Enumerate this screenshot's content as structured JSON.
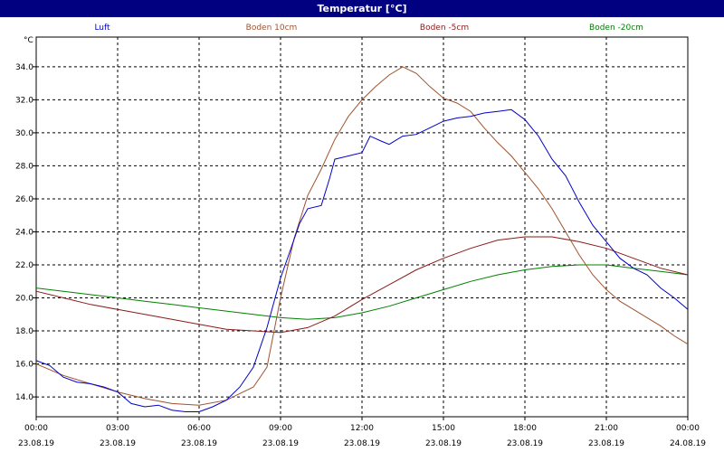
{
  "window": {
    "title": "Temperatur [°C]"
  },
  "chart_data": {
    "type": "line",
    "title": "Temperatur [°C]",
    "ylabel": "°C",
    "ylim": [
      12.8,
      35.8
    ],
    "yticks": [
      14.0,
      16.0,
      18.0,
      20.0,
      22.0,
      24.0,
      26.0,
      28.0,
      30.0,
      32.0,
      34.0
    ],
    "xlim": [
      0,
      24
    ],
    "xticks": [
      {
        "t": 0,
        "time": "00:00",
        "date": "23.08.19"
      },
      {
        "t": 3,
        "time": "03:00",
        "date": "23.08.19"
      },
      {
        "t": 6,
        "time": "06:00",
        "date": "23.08.19"
      },
      {
        "t": 9,
        "time": "09:00",
        "date": "23.08.19"
      },
      {
        "t": 12,
        "time": "12:00",
        "date": "23.08.19"
      },
      {
        "t": 15,
        "time": "15:00",
        "date": "23.08.19"
      },
      {
        "t": 18,
        "time": "18:00",
        "date": "23.08.19"
      },
      {
        "t": 21,
        "time": "21:00",
        "date": "23.08.19"
      },
      {
        "t": 24,
        "time": "00:00",
        "date": "24.08.19"
      }
    ],
    "grid": true,
    "legend": "top",
    "series": [
      {
        "name": "Luft",
        "color": "#0000cc",
        "points": [
          [
            0,
            16.2
          ],
          [
            0.5,
            15.9
          ],
          [
            1,
            15.2
          ],
          [
            1.5,
            14.9
          ],
          [
            2,
            14.8
          ],
          [
            2.5,
            14.6
          ],
          [
            3,
            14.3
          ],
          [
            3.5,
            13.6
          ],
          [
            4,
            13.4
          ],
          [
            4.5,
            13.5
          ],
          [
            5,
            13.2
          ],
          [
            5.5,
            13.1
          ],
          [
            6,
            13.1
          ],
          [
            6.5,
            13.4
          ],
          [
            7,
            13.8
          ],
          [
            7.5,
            14.6
          ],
          [
            8,
            15.8
          ],
          [
            8.5,
            18.2
          ],
          [
            9,
            21.2
          ],
          [
            9.3,
            22.6
          ],
          [
            9.7,
            24.5
          ],
          [
            10,
            25.4
          ],
          [
            10.5,
            25.6
          ],
          [
            10.8,
            27.2
          ],
          [
            11,
            28.4
          ],
          [
            11.5,
            28.6
          ],
          [
            12,
            28.8
          ],
          [
            12.3,
            29.8
          ],
          [
            12.7,
            29.5
          ],
          [
            13,
            29.3
          ],
          [
            13.5,
            29.8
          ],
          [
            14,
            29.9
          ],
          [
            14.5,
            30.3
          ],
          [
            15,
            30.7
          ],
          [
            15.5,
            30.9
          ],
          [
            16,
            31.0
          ],
          [
            16.5,
            31.2
          ],
          [
            17,
            31.3
          ],
          [
            17.5,
            31.4
          ],
          [
            18,
            30.8
          ],
          [
            18.5,
            29.8
          ],
          [
            19,
            28.4
          ],
          [
            19.5,
            27.4
          ],
          [
            20,
            25.8
          ],
          [
            20.5,
            24.4
          ],
          [
            21,
            23.4
          ],
          [
            21.5,
            22.4
          ],
          [
            22,
            21.8
          ],
          [
            22.5,
            21.4
          ],
          [
            23,
            20.6
          ],
          [
            23.5,
            20.0
          ],
          [
            24,
            19.3
          ]
        ]
      },
      {
        "name": "Boden 10cm",
        "color": "#a0522d",
        "points": [
          [
            0,
            16.0
          ],
          [
            1,
            15.3
          ],
          [
            2,
            14.8
          ],
          [
            3,
            14.3
          ],
          [
            4,
            13.9
          ],
          [
            5,
            13.6
          ],
          [
            6,
            13.5
          ],
          [
            7,
            13.8
          ],
          [
            8,
            14.6
          ],
          [
            8.5,
            15.8
          ],
          [
            9,
            20.0
          ],
          [
            9.5,
            23.6
          ],
          [
            10,
            26.2
          ],
          [
            10.5,
            27.8
          ],
          [
            11,
            29.6
          ],
          [
            11.5,
            31.0
          ],
          [
            12,
            32.0
          ],
          [
            12.5,
            32.8
          ],
          [
            13,
            33.5
          ],
          [
            13.5,
            34.0
          ],
          [
            14,
            33.6
          ],
          [
            14.5,
            32.8
          ],
          [
            15,
            32.1
          ],
          [
            15.5,
            31.8
          ],
          [
            16,
            31.3
          ],
          [
            16.5,
            30.3
          ],
          [
            17,
            29.4
          ],
          [
            17.5,
            28.6
          ],
          [
            18,
            27.6
          ],
          [
            18.5,
            26.6
          ],
          [
            19,
            25.4
          ],
          [
            19.5,
            24.0
          ],
          [
            20,
            22.6
          ],
          [
            20.5,
            21.4
          ],
          [
            21,
            20.5
          ],
          [
            21.5,
            19.8
          ],
          [
            22,
            19.3
          ],
          [
            22.5,
            18.8
          ],
          [
            23,
            18.3
          ],
          [
            23.5,
            17.7
          ],
          [
            24,
            17.2
          ]
        ]
      },
      {
        "name": "Boden -5cm",
        "color": "#8b1a1a",
        "points": [
          [
            0,
            20.4
          ],
          [
            1,
            20.0
          ],
          [
            2,
            19.6
          ],
          [
            3,
            19.3
          ],
          [
            4,
            19.0
          ],
          [
            5,
            18.7
          ],
          [
            6,
            18.4
          ],
          [
            7,
            18.1
          ],
          [
            8,
            18.0
          ],
          [
            9,
            17.9
          ],
          [
            10,
            18.2
          ],
          [
            11,
            18.9
          ],
          [
            12,
            19.9
          ],
          [
            13,
            20.8
          ],
          [
            14,
            21.7
          ],
          [
            15,
            22.4
          ],
          [
            16,
            23.0
          ],
          [
            17,
            23.5
          ],
          [
            18,
            23.7
          ],
          [
            19,
            23.7
          ],
          [
            20,
            23.4
          ],
          [
            21,
            23.0
          ],
          [
            22,
            22.4
          ],
          [
            23,
            21.8
          ],
          [
            24,
            21.4
          ]
        ]
      },
      {
        "name": "Boden -20cm",
        "color": "#008000",
        "points": [
          [
            0,
            20.6
          ],
          [
            1,
            20.4
          ],
          [
            2,
            20.2
          ],
          [
            3,
            20.0
          ],
          [
            4,
            19.8
          ],
          [
            5,
            19.6
          ],
          [
            6,
            19.4
          ],
          [
            7,
            19.2
          ],
          [
            8,
            19.0
          ],
          [
            9,
            18.8
          ],
          [
            10,
            18.7
          ],
          [
            11,
            18.8
          ],
          [
            12,
            19.1
          ],
          [
            13,
            19.5
          ],
          [
            14,
            20.0
          ],
          [
            15,
            20.5
          ],
          [
            16,
            21.0
          ],
          [
            17,
            21.4
          ],
          [
            18,
            21.7
          ],
          [
            19,
            21.9
          ],
          [
            20,
            22.0
          ],
          [
            21,
            22.0
          ],
          [
            22,
            21.8
          ],
          [
            23,
            21.6
          ],
          [
            24,
            21.4
          ]
        ]
      }
    ]
  }
}
